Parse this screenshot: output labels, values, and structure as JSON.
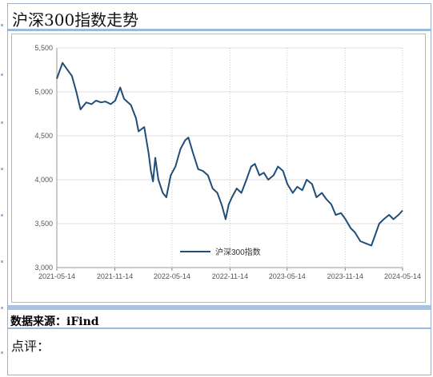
{
  "title": "沪深300指数走势",
  "source": "数据来源：iFind",
  "comment_label": "点评：",
  "chart_data": {
    "type": "line",
    "title": "",
    "xlabel": "",
    "ylabel": "",
    "ylim": [
      3000,
      5500
    ],
    "y_ticks": [
      "3,000",
      "3,500",
      "4,000",
      "4,500",
      "5,000",
      "5,500"
    ],
    "y_tick_values": [
      3000,
      3500,
      4000,
      4500,
      5000,
      5500
    ],
    "x_ticks": [
      "2021-05-14",
      "2021-11-14",
      "2022-05-14",
      "2022-11-14",
      "2023-05-14",
      "2023-11-14",
      "2024-05-14"
    ],
    "grid": true,
    "legend_position": "bottom-center",
    "series": [
      {
        "name": "沪深300指数",
        "color": "#1f4e79",
        "x": [
          "2021-05-14",
          "2021-06-01",
          "2021-06-15",
          "2021-07-01",
          "2021-07-15",
          "2021-07-28",
          "2021-08-15",
          "2021-09-01",
          "2021-09-15",
          "2021-10-01",
          "2021-10-15",
          "2021-11-01",
          "2021-11-15",
          "2021-12-01",
          "2021-12-13",
          "2022-01-04",
          "2022-01-20",
          "2022-01-28",
          "2022-02-15",
          "2022-03-01",
          "2022-03-08",
          "2022-03-15",
          "2022-03-22",
          "2022-04-01",
          "2022-04-15",
          "2022-04-26",
          "2022-05-10",
          "2022-05-25",
          "2022-06-10",
          "2022-06-25",
          "2022-07-05",
          "2022-07-20",
          "2022-08-05",
          "2022-08-20",
          "2022-09-05",
          "2022-09-20",
          "2022-10-05",
          "2022-10-20",
          "2022-10-31",
          "2022-11-10",
          "2022-11-20",
          "2022-12-05",
          "2022-12-20",
          "2023-01-05",
          "2023-01-20",
          "2023-02-01",
          "2023-02-15",
          "2023-03-01",
          "2023-03-15",
          "2023-04-01",
          "2023-04-15",
          "2023-05-01",
          "2023-05-15",
          "2023-06-01",
          "2023-06-15",
          "2023-07-01",
          "2023-07-15",
          "2023-08-01",
          "2023-08-15",
          "2023-09-01",
          "2023-09-15",
          "2023-10-01",
          "2023-10-15",
          "2023-11-01",
          "2023-11-15",
          "2023-12-01",
          "2023-12-15",
          "2024-01-01",
          "2024-01-15",
          "2024-02-05",
          "2024-02-20",
          "2024-03-01",
          "2024-03-15",
          "2024-04-01",
          "2024-04-15",
          "2024-05-01",
          "2024-05-14"
        ],
        "values": [
          5150,
          5330,
          5260,
          5180,
          5000,
          4800,
          4880,
          4860,
          4900,
          4880,
          4890,
          4860,
          4900,
          5050,
          4920,
          4850,
          4700,
          4550,
          4600,
          4300,
          4100,
          3980,
          4250,
          4000,
          3850,
          3800,
          4050,
          4150,
          4350,
          4450,
          4480,
          4300,
          4120,
          4100,
          4050,
          3900,
          3850,
          3700,
          3550,
          3720,
          3800,
          3900,
          3850,
          4000,
          4150,
          4180,
          4050,
          4080,
          4000,
          4050,
          4150,
          4100,
          3950,
          3850,
          3920,
          3880,
          4000,
          3950,
          3800,
          3850,
          3780,
          3720,
          3600,
          3620,
          3550,
          3450,
          3400,
          3300,
          3280,
          3250,
          3400,
          3500,
          3550,
          3600,
          3550,
          3600,
          3650
        ]
      }
    ]
  }
}
